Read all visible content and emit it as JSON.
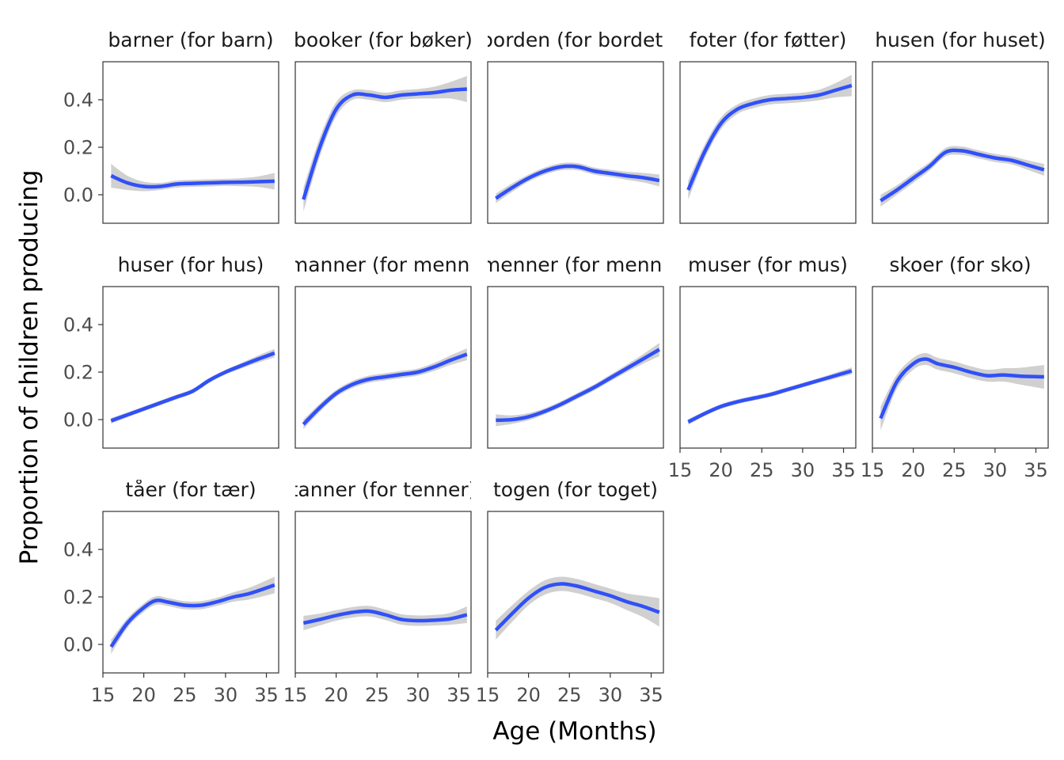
{
  "chart_data": {
    "type": "line",
    "xlabel": "Age (Months)",
    "ylabel": "Proportion of children producing",
    "xlim": [
      15,
      36.5
    ],
    "ylim": [
      -0.12,
      0.56
    ],
    "x_ticks": [
      15,
      20,
      25,
      30,
      35
    ],
    "x_tick_labels": [
      "15",
      "20",
      "25",
      "30",
      "35"
    ],
    "y_ticks": [
      0.0,
      0.2,
      0.4
    ],
    "y_tick_labels": [
      "0.0",
      "0.2",
      "0.4"
    ],
    "grid": false,
    "colors": {
      "line": "#3050F8",
      "ribbon": "#BEBEBE",
      "panel_border": "#333333"
    },
    "panels": [
      {
        "title": "barner (for barn)",
        "x": [
          16,
          18,
          20,
          22,
          24,
          26,
          28,
          30,
          32,
          34,
          36
        ],
        "y": [
          0.08,
          0.05,
          0.035,
          0.035,
          0.045,
          0.048,
          0.05,
          0.052,
          0.053,
          0.055,
          0.057
        ],
        "ci": [
          0.05,
          0.03,
          0.02,
          0.015,
          0.015,
          0.015,
          0.015,
          0.015,
          0.017,
          0.022,
          0.035
        ]
      },
      {
        "title": "booker (for bøker)",
        "x": [
          16,
          18,
          20,
          22,
          24,
          26,
          28,
          30,
          32,
          34,
          36
        ],
        "y": [
          -0.02,
          0.2,
          0.36,
          0.42,
          0.42,
          0.41,
          0.42,
          0.425,
          0.43,
          0.44,
          0.445
        ],
        "ci": [
          0.05,
          0.04,
          0.03,
          0.02,
          0.02,
          0.02,
          0.02,
          0.02,
          0.025,
          0.035,
          0.055
        ]
      },
      {
        "title": "borden (for bordet)",
        "x": [
          16,
          18,
          20,
          22,
          24,
          26,
          28,
          30,
          32,
          34,
          36
        ],
        "y": [
          -0.015,
          0.03,
          0.07,
          0.1,
          0.118,
          0.118,
          0.1,
          0.09,
          0.08,
          0.072,
          0.06
        ],
        "ci": [
          0.02,
          0.018,
          0.015,
          0.015,
          0.015,
          0.015,
          0.015,
          0.015,
          0.017,
          0.02,
          0.025
        ]
      },
      {
        "title": "foter (for føtter)",
        "x": [
          16,
          18,
          20,
          22,
          24,
          26,
          28,
          30,
          32,
          34,
          36
        ],
        "y": [
          0.02,
          0.18,
          0.3,
          0.36,
          0.385,
          0.4,
          0.405,
          0.41,
          0.42,
          0.44,
          0.46
        ],
        "ci": [
          0.04,
          0.03,
          0.025,
          0.02,
          0.02,
          0.02,
          0.02,
          0.02,
          0.022,
          0.03,
          0.045
        ]
      },
      {
        "title": "husen (for huset)",
        "x": [
          16,
          18,
          20,
          22,
          24,
          26,
          28,
          30,
          32,
          34,
          36
        ],
        "y": [
          -0.025,
          0.02,
          0.07,
          0.12,
          0.18,
          0.185,
          0.17,
          0.155,
          0.145,
          0.125,
          0.105
        ],
        "ci": [
          0.025,
          0.02,
          0.02,
          0.018,
          0.018,
          0.018,
          0.017,
          0.017,
          0.017,
          0.02,
          0.025
        ]
      },
      {
        "title": "huser (for hus)",
        "x": [
          16,
          18,
          20,
          22,
          24,
          26,
          28,
          30,
          32,
          34,
          36
        ],
        "y": [
          -0.005,
          0.02,
          0.045,
          0.07,
          0.095,
          0.12,
          0.165,
          0.2,
          0.228,
          0.255,
          0.28
        ],
        "ci": [
          0.012,
          0.01,
          0.01,
          0.01,
          0.01,
          0.01,
          0.01,
          0.01,
          0.012,
          0.015,
          0.018
        ]
      },
      {
        "title": "manner (for menn)",
        "x": [
          16,
          18,
          20,
          22,
          24,
          26,
          28,
          30,
          32,
          34,
          36
        ],
        "y": [
          -0.02,
          0.05,
          0.11,
          0.148,
          0.17,
          0.18,
          0.19,
          0.2,
          0.222,
          0.25,
          0.275
        ],
        "ci": [
          0.02,
          0.017,
          0.015,
          0.015,
          0.015,
          0.015,
          0.015,
          0.015,
          0.017,
          0.02,
          0.025
        ]
      },
      {
        "title": "menner (for menn)",
        "x": [
          16,
          18,
          20,
          22,
          24,
          26,
          28,
          30,
          32,
          34,
          36
        ],
        "y": [
          -0.003,
          0.0,
          0.012,
          0.035,
          0.065,
          0.1,
          0.135,
          0.175,
          0.215,
          0.255,
          0.295
        ],
        "ci": [
          0.025,
          0.018,
          0.015,
          0.013,
          0.013,
          0.013,
          0.013,
          0.014,
          0.016,
          0.02,
          0.028
        ]
      },
      {
        "title": "muser (for mus)",
        "x": [
          16,
          18,
          20,
          22,
          24,
          26,
          28,
          30,
          32,
          34,
          36
        ],
        "y": [
          -0.01,
          0.025,
          0.055,
          0.075,
          0.09,
          0.105,
          0.125,
          0.145,
          0.165,
          0.185,
          0.205
        ],
        "ci": [
          0.012,
          0.01,
          0.01,
          0.01,
          0.01,
          0.01,
          0.01,
          0.01,
          0.01,
          0.012,
          0.015
        ]
      },
      {
        "title": "skoer (for sko)",
        "x": [
          16,
          18,
          20,
          21.5,
          23,
          25,
          27,
          29,
          31,
          33,
          36
        ],
        "y": [
          0.005,
          0.16,
          0.235,
          0.255,
          0.235,
          0.22,
          0.2,
          0.185,
          0.188,
          0.183,
          0.18
        ],
        "ci": [
          0.05,
          0.03,
          0.025,
          0.025,
          0.025,
          0.025,
          0.025,
          0.025,
          0.028,
          0.035,
          0.05
        ]
      },
      {
        "title": "tåer (for tær)",
        "x": [
          16,
          18,
          20,
          21.5,
          23,
          25,
          27,
          29,
          31,
          33,
          36
        ],
        "y": [
          -0.01,
          0.09,
          0.155,
          0.185,
          0.178,
          0.165,
          0.165,
          0.18,
          0.2,
          0.215,
          0.25
        ],
        "ci": [
          0.03,
          0.02,
          0.018,
          0.018,
          0.017,
          0.017,
          0.017,
          0.017,
          0.02,
          0.025,
          0.035
        ]
      },
      {
        "title": "tanner (for tenner)",
        "x": [
          16,
          18,
          20,
          22,
          24,
          26,
          28,
          30,
          32,
          34,
          36
        ],
        "y": [
          0.09,
          0.105,
          0.122,
          0.135,
          0.14,
          0.125,
          0.105,
          0.1,
          0.102,
          0.108,
          0.125
        ],
        "ci": [
          0.03,
          0.025,
          0.022,
          0.022,
          0.022,
          0.022,
          0.022,
          0.022,
          0.022,
          0.025,
          0.035
        ]
      },
      {
        "title": "togen (for toget)",
        "x": [
          16,
          18,
          20,
          22,
          24,
          26,
          28,
          30,
          32,
          34,
          36
        ],
        "y": [
          0.06,
          0.13,
          0.195,
          0.24,
          0.255,
          0.245,
          0.225,
          0.205,
          0.18,
          0.16,
          0.135
        ],
        "ci": [
          0.04,
          0.035,
          0.03,
          0.03,
          0.03,
          0.03,
          0.03,
          0.03,
          0.035,
          0.045,
          0.06
        ]
      }
    ]
  }
}
